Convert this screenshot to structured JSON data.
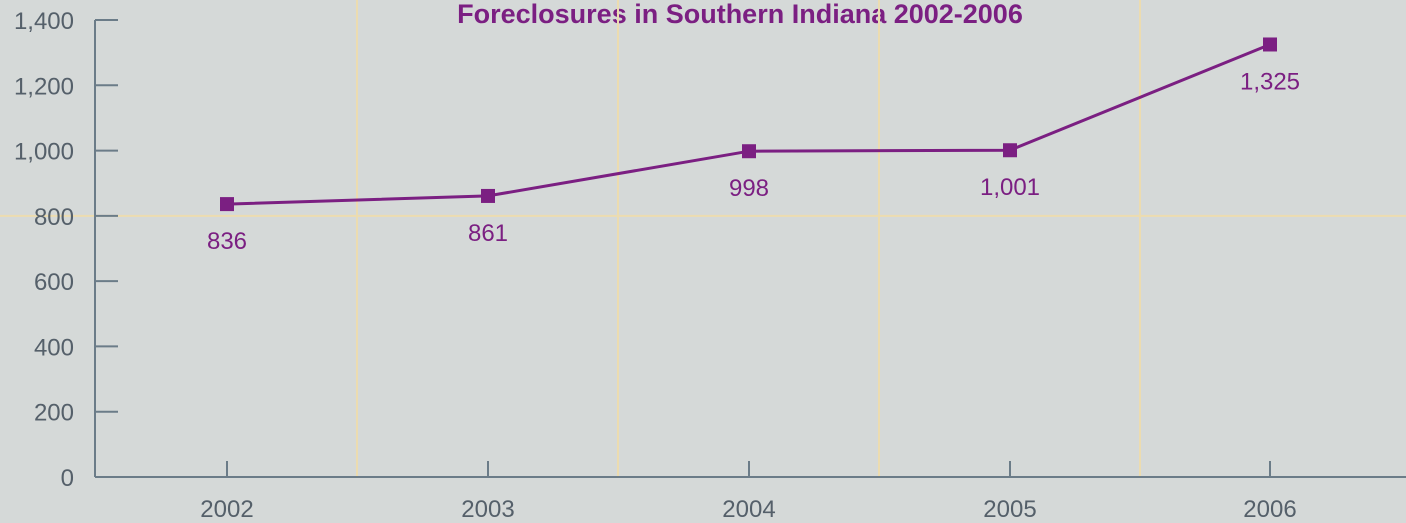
{
  "chart_data": {
    "type": "line",
    "title": "Foreclosures in Southern Indiana 2002-2006",
    "xlabel": "",
    "ylabel": "",
    "categories": [
      "2002",
      "2003",
      "2004",
      "2005",
      "2006"
    ],
    "series": [
      {
        "values": [
          836,
          861,
          998,
          1001,
          1325
        ],
        "data_labels": [
          "836",
          "861",
          "998",
          "1,001",
          "1,325"
        ],
        "marker": "square"
      }
    ],
    "y_ticks": [
      0,
      200,
      400,
      600,
      800,
      1000,
      1200,
      1400
    ],
    "y_tick_labels": [
      "0",
      "200",
      "400",
      "600",
      "800",
      "1,000",
      "1,200",
      "1,400"
    ],
    "ylim": [
      0,
      1400
    ],
    "grid": true,
    "legend": "none"
  },
  "colors": {
    "background": "#d5d9d8",
    "series": "#7b1f82",
    "title": "#7b1f82",
    "axis": "#6b7c88",
    "tick_label": "#55606a",
    "grid": "#ecdcb0"
  }
}
